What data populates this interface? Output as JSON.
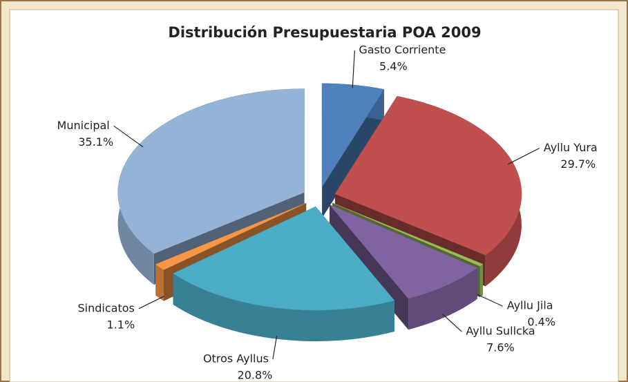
{
  "chart_data": {
    "type": "pie",
    "title": "Distribución Presupuestaria POA 2009",
    "categories": [
      "Gasto Corriente",
      "Ayllu Yura",
      "Ayllu Jila",
      "Ayllu Sullcka",
      "Otros Ayllus",
      "Sindicatos",
      "Municipal"
    ],
    "values": [
      5.4,
      29.7,
      0.4,
      7.6,
      20.8,
      1.1,
      35.1
    ],
    "value_labels": [
      "5.4%",
      "29.7%",
      "0.4%",
      "7.6%",
      "20.8%",
      "1.1%",
      "35.1%"
    ],
    "colors": [
      "#4f81bd",
      "#c0504d",
      "#9bbb59",
      "#8064a2",
      "#4bacc6",
      "#f79646",
      "#95b3d7"
    ]
  }
}
